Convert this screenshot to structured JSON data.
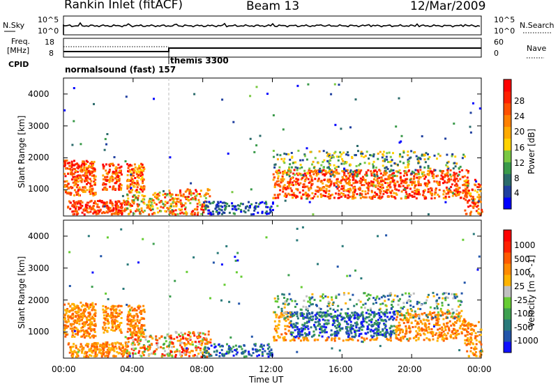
{
  "header": {
    "title": "Rankin Inlet (fitACF)",
    "beam": "Beam 13",
    "date": "12/Mar/2009"
  },
  "status_panels": {
    "nsky_label": "N.Sky",
    "nsky_ticks": [
      "10^5",
      "10^0"
    ],
    "nsearch_label": "N.Search",
    "nsearch_ticks": [
      "10^5",
      "10^0"
    ],
    "freq_label_1": "Freq.",
    "freq_label_2": "[MHz]",
    "freq_ticks": [
      "18",
      "8"
    ],
    "nave_label": "Nave",
    "nave_ticks": [
      "60",
      "0"
    ],
    "cpid_label": "CPID",
    "cpid_modes": [
      "normalsound (fast) 157",
      "themis 3300"
    ]
  },
  "chart_data": [
    {
      "type": "heatmap",
      "name": "power",
      "ylabel": "Slant Range [km]",
      "xlabel": "Time UT",
      "x_ticks": [
        "00:00",
        "04:00",
        "08:00",
        "12:00",
        "16:00",
        "20:00",
        "00:00"
      ],
      "y_ticks": [
        1000,
        2000,
        3000,
        4000
      ],
      "ylim": [
        180,
        4500
      ],
      "xlim_hours": [
        0,
        24
      ],
      "colorbar_label": "Power [dB]",
      "colorbar_ticks": [
        "28",
        "24",
        "20",
        "16",
        "12",
        "8",
        "4"
      ],
      "colorbar_colors": [
        "#0000ff",
        "#1f3f9f",
        "#2a6a6a",
        "#3a9a4a",
        "#7ac843",
        "#ffd200",
        "#ffaa00",
        "#ff8000",
        "#ff5000",
        "#ff2000",
        "#ff0000"
      ]
    },
    {
      "type": "heatmap",
      "name": "velocity",
      "ylabel": "Slant Range [km]",
      "xlabel": "Time UT",
      "x_ticks": [
        "00:00",
        "04:00",
        "08:00",
        "12:00",
        "16:00",
        "20:00",
        "00:00"
      ],
      "y_ticks": [
        1000,
        2000,
        3000,
        4000
      ],
      "ylim": [
        180,
        4500
      ],
      "xlim_hours": [
        0,
        24
      ],
      "colorbar_label": "Velocity [m s^-1]",
      "colorbar_ticks": [
        "1000",
        "500",
        "100",
        "25",
        "-25",
        "-100",
        "-500",
        "-1000"
      ],
      "colorbar_colors": [
        "#1010ff",
        "#2255aa",
        "#2a7a7a",
        "#3ea050",
        "#66cc33",
        "#c0c0c0",
        "#ffb300",
        "#ff8a00",
        "#ff5a00",
        "#ff2000",
        "#ff0000"
      ]
    }
  ],
  "axis": {
    "time_label": "Time UT"
  }
}
